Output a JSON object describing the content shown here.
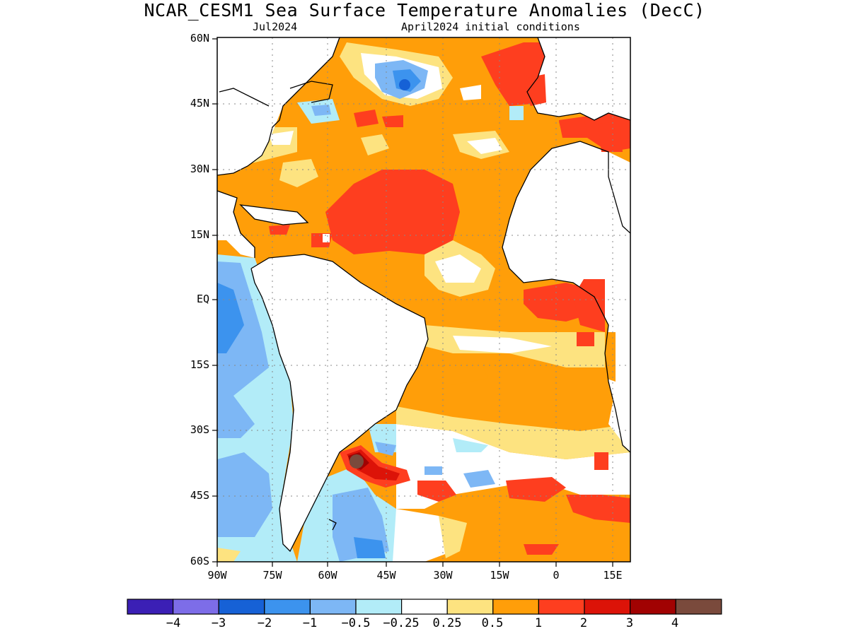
{
  "title": "NCAR_CESM1 Sea Surface Temperature Anomalies (DecC)",
  "subtitle_left": "Jul2024",
  "subtitle_right": "April2024 initial conditions",
  "lat_labels": [
    "60N",
    "45N",
    "30N",
    "15N",
    "EQ",
    "15S",
    "30S",
    "45S",
    "60S"
  ],
  "lon_labels": [
    "90W",
    "75W",
    "60W",
    "45W",
    "30W",
    "15W",
    "0",
    "15E"
  ],
  "colorbar": {
    "colors": [
      "#3b1fb5",
      "#7d6de8",
      "#1661d6",
      "#3c93ee",
      "#7db7f5",
      "#b2ecf8",
      "#ffffff",
      "#fde380",
      "#ff9e09",
      "#fe3e1f",
      "#dc1308",
      "#a10202",
      "#7a4a3c"
    ],
    "labels": [
      "−4",
      "−3",
      "−2",
      "−1",
      "−0.5",
      "−0.25",
      "0.25",
      "0.5",
      "1",
      "2",
      "3",
      "4"
    ]
  },
  "colors": {
    "ocean_base": "#ff9e09",
    "land": "#ffffff",
    "coast": "#000000"
  }
}
